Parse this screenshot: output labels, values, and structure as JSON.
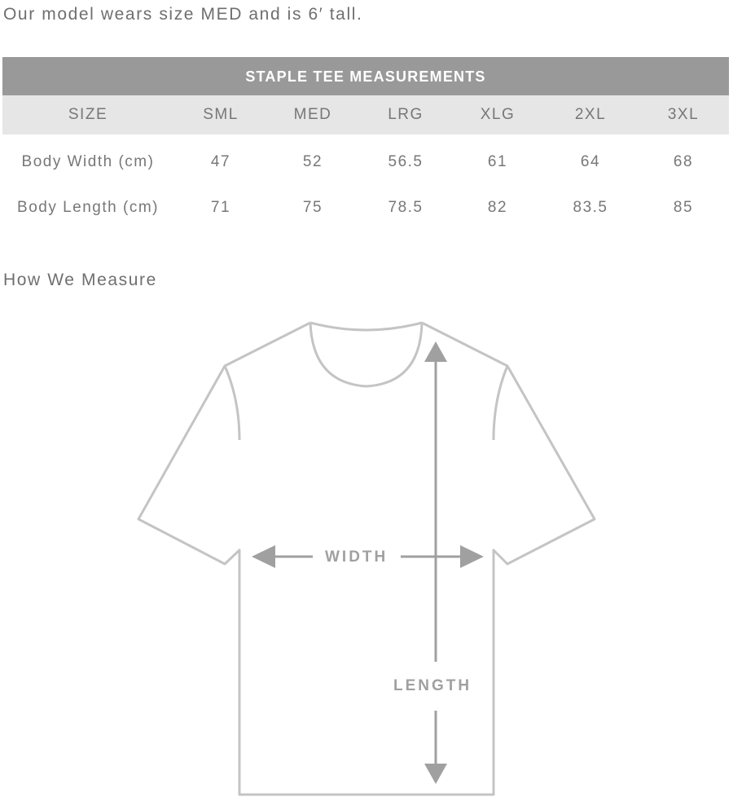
{
  "intro": "Our model wears size MED and is 6′ tall.",
  "table": {
    "title": "STAPLE TEE MEASUREMENTS",
    "header": [
      "SIZE",
      "SML",
      "MED",
      "LRG",
      "XLG",
      "2XL",
      "3XL"
    ],
    "rows": [
      {
        "label": "Body Width (cm)",
        "values": [
          "47",
          "52",
          "56.5",
          "61",
          "64",
          "68"
        ]
      },
      {
        "label": "Body Length (cm)",
        "values": [
          "71",
          "75",
          "78.5",
          "82",
          "83.5",
          "85"
        ]
      }
    ]
  },
  "measure": {
    "heading": "How We Measure",
    "width_label": "WIDTH",
    "length_label": "LENGTH"
  },
  "colors": {
    "header_bg": "#999999",
    "size_row_bg": "#e6e6e6",
    "outline": "#c4c4c4",
    "arrow": "#a0a0a0"
  }
}
